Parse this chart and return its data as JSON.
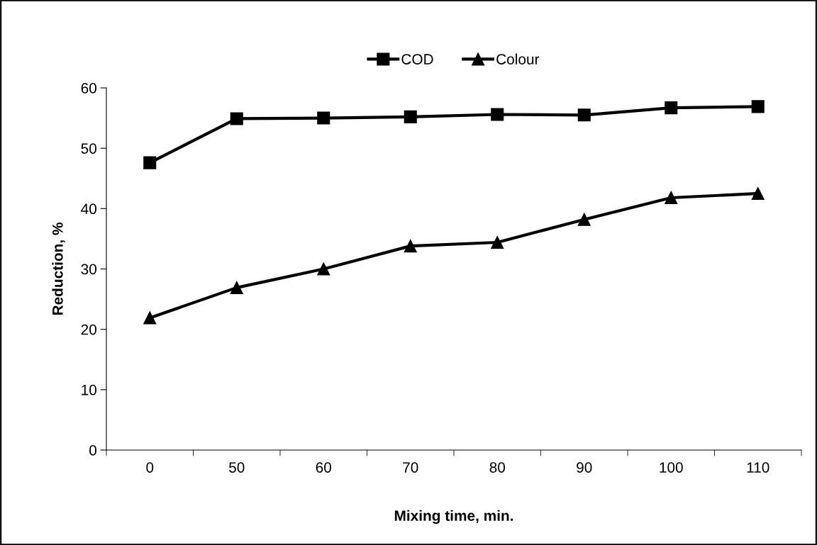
{
  "chart_data": {
    "type": "line",
    "xlabel": "Mixing time, min.",
    "ylabel": "Reduction, %",
    "categories": [
      "0",
      "50",
      "60",
      "70",
      "80",
      "90",
      "100",
      "110"
    ],
    "series": [
      {
        "name": "COD",
        "color": "#000000",
        "marker": "square",
        "values": [
          47.6,
          54.9,
          55.0,
          55.2,
          55.6,
          55.5,
          56.7,
          56.9
        ]
      },
      {
        "name": "Colour",
        "color": "#000000",
        "marker": "triangle",
        "values": [
          21.9,
          26.9,
          30.0,
          33.8,
          34.4,
          38.2,
          41.8,
          42.5
        ]
      }
    ],
    "ylim": [
      0,
      60
    ],
    "yticks": [
      0,
      10,
      20,
      30,
      40,
      50,
      60
    ],
    "grid": false,
    "legend": "top",
    "line_style": "solid"
  }
}
